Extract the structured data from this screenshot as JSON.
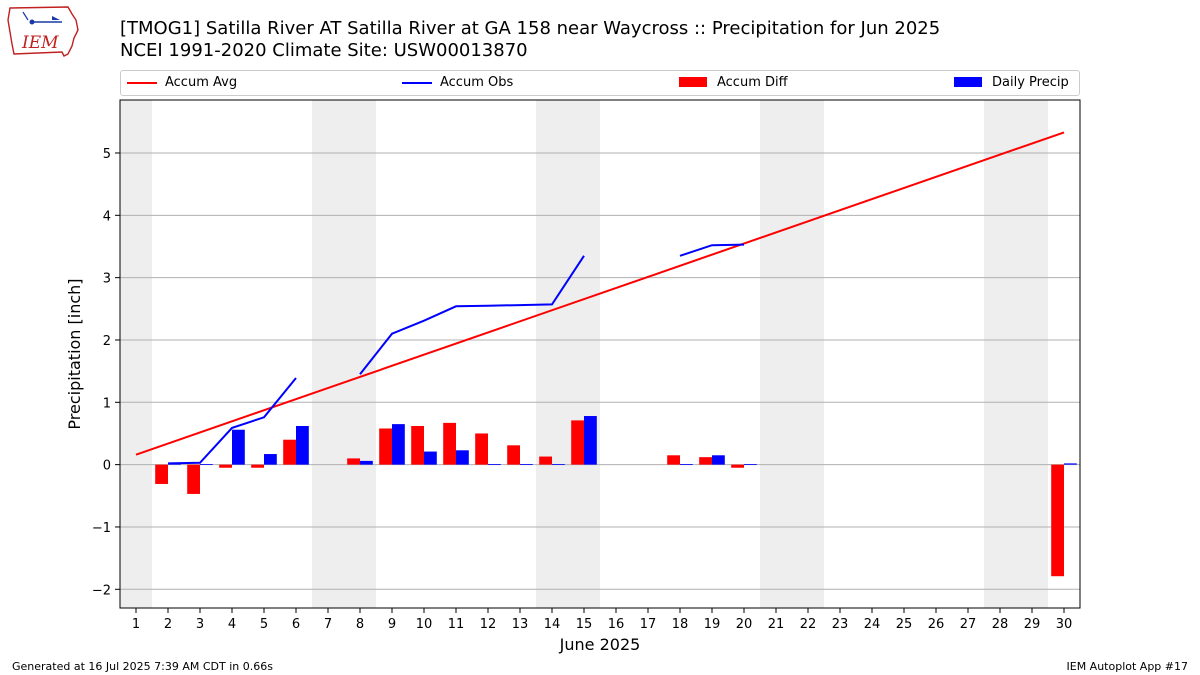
{
  "header": {
    "title_line1": "[TMOG1] Satilla River  AT Satilla River at GA 158 near Waycross :: Precipitation for Jun 2025",
    "title_line2": "NCEI 1991-2020 Climate Site: USW00013870"
  },
  "logo": {
    "text": "IEM"
  },
  "footer": {
    "generated": "Generated at 16 Jul 2025 7:39 AM CDT in 0.66s",
    "app": "IEM Autoplot App #17"
  },
  "colors": {
    "avg": "#ff0000",
    "obs": "#0000ff",
    "diff": "#ff0000",
    "daily": "#0000ff",
    "weekend": "#eeeeee",
    "grid": "#b0b0b0"
  },
  "chart_data": {
    "type": "bar",
    "title": "[TMOG1] Satilla River  AT Satilla River at GA 158 near Waycross :: Precipitation for Jun 2025",
    "subtitle": "NCEI 1991-2020 Climate Site: USW00013870",
    "xlabel": "June 2025",
    "ylabel": "Precipitation [inch]",
    "xlim": [
      0.5,
      30.5
    ],
    "ylim": [
      -2.3,
      5.85
    ],
    "xticks": [
      1,
      2,
      3,
      4,
      5,
      6,
      7,
      8,
      9,
      10,
      11,
      12,
      13,
      14,
      15,
      16,
      17,
      18,
      19,
      20,
      21,
      22,
      23,
      24,
      25,
      26,
      27,
      28,
      29,
      30
    ],
    "yticks": [
      -2,
      -1,
      0,
      1,
      2,
      3,
      4,
      5
    ],
    "grid": "horizontal",
    "legend_position": "top",
    "weekend_days": [
      1,
      7,
      8,
      14,
      15,
      21,
      22,
      28,
      29
    ],
    "series": [
      {
        "name": "Accum Avg",
        "kind": "line",
        "color": "#ff0000",
        "x": [
          1,
          30
        ],
        "values": [
          0.16,
          5.33
        ]
      },
      {
        "name": "Accum Obs",
        "kind": "line",
        "color": "#0000ff",
        "x": [
          2,
          3,
          4,
          5,
          6,
          7,
          8,
          9,
          10,
          11,
          12,
          13,
          14,
          15,
          16,
          17,
          18,
          19,
          20
        ],
        "values": [
          0.02,
          0.03,
          0.59,
          0.76,
          1.39,
          null,
          1.45,
          2.1,
          2.31,
          2.54,
          2.55,
          2.56,
          2.57,
          3.35,
          null,
          null,
          3.35,
          3.52,
          3.53
        ]
      },
      {
        "name": "Accum Diff",
        "kind": "bar",
        "color": "#ff0000",
        "x": [
          2,
          3,
          4,
          5,
          6,
          8,
          9,
          10,
          11,
          12,
          13,
          14,
          15,
          18,
          19,
          20,
          30
        ],
        "values": [
          -0.31,
          -0.47,
          -0.05,
          -0.05,
          0.4,
          0.1,
          0.58,
          0.62,
          0.67,
          0.5,
          0.31,
          0.13,
          0.71,
          0.15,
          0.12,
          -0.05,
          -1.79
        ]
      },
      {
        "name": "Daily Precip",
        "kind": "bar",
        "color": "#0000ff",
        "x": [
          2,
          3,
          4,
          5,
          6,
          8,
          9,
          10,
          11,
          12,
          13,
          14,
          15,
          18,
          19,
          20,
          30
        ],
        "values": [
          0.02,
          0.01,
          0.56,
          0.17,
          0.62,
          0.06,
          0.65,
          0.21,
          0.23,
          0.01,
          0.01,
          0.01,
          0.78,
          0.01,
          0.15,
          0.01,
          0.02
        ]
      }
    ]
  }
}
